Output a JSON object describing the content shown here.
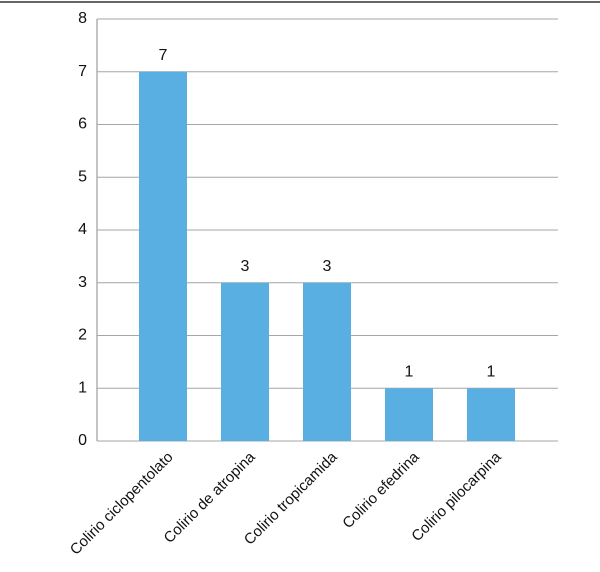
{
  "chart_data": {
    "type": "bar",
    "categories": [
      "Colirio ciclopentolato",
      "Colirio de atropina",
      "Colirio tropicamida",
      "Colirio efedrina",
      "Colirio pilocarpina"
    ],
    "values": [
      7,
      3,
      3,
      1,
      1
    ],
    "color": "#5aafe2",
    "ylim": [
      0,
      8
    ],
    "yticks": [
      0,
      1,
      2,
      3,
      4,
      5,
      6,
      7,
      8
    ],
    "grid": true
  }
}
